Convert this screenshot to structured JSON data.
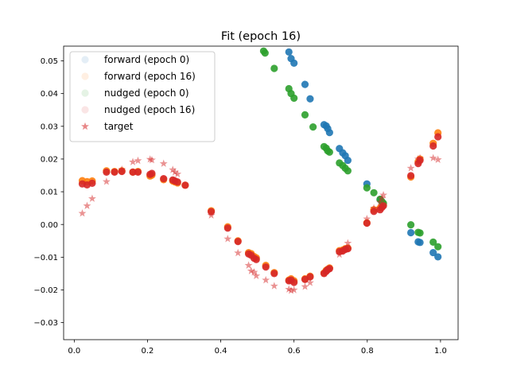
{
  "chart_data": {
    "type": "scatter",
    "title": "Fit (epoch 16)",
    "xlabel": "",
    "ylabel": "",
    "xlim": [
      -0.029,
      1.048
    ],
    "ylim": [
      -0.0352,
      0.0545
    ],
    "xticks": [
      0.0,
      0.2,
      0.4,
      0.6,
      0.8,
      1.0
    ],
    "xtick_labels": [
      "0.0",
      "0.2",
      "0.4",
      "0.6",
      "0.8",
      "1.0"
    ],
    "yticks": [
      -0.03,
      -0.02,
      -0.01,
      0.0,
      0.01,
      0.02,
      0.03,
      0.04,
      0.05
    ],
    "ytick_labels": [
      "−0.03",
      "−0.02",
      "−0.01",
      "0.00",
      "0.01",
      "0.02",
      "0.03",
      "0.04",
      "0.05"
    ],
    "grid": false,
    "legend_position": "top-left",
    "series": [
      {
        "name": "forward (epoch 0)",
        "color": "#1f77b4",
        "marker": "circle",
        "legend_alpha": 0.12,
        "points": [
          [
            0.586,
            0.0527
          ],
          [
            0.592,
            0.0507
          ],
          [
            0.6,
            0.0493
          ],
          [
            0.63,
            0.0428
          ],
          [
            0.644,
            0.0384
          ],
          [
            0.682,
            0.0305
          ],
          [
            0.688,
            0.0301
          ],
          [
            0.692,
            0.0293
          ],
          [
            0.697,
            0.0281
          ],
          [
            0.724,
            0.0232
          ],
          [
            0.733,
            0.0219
          ],
          [
            0.74,
            0.021
          ],
          [
            0.747,
            0.0196
          ],
          [
            0.799,
            0.0124
          ],
          [
            0.835,
            0.0076
          ],
          [
            0.919,
            -0.0025
          ],
          [
            0.939,
            -0.0053
          ],
          [
            0.944,
            -0.0055
          ],
          [
            0.98,
            -0.0086
          ],
          [
            0.993,
            -0.0099
          ]
        ]
      },
      {
        "name": "forward (epoch 16)",
        "color": "#ff7f0e",
        "marker": "circle",
        "legend_alpha": 0.12,
        "points": [
          [
            0.022,
            0.0134
          ],
          [
            0.035,
            0.0131
          ],
          [
            0.049,
            0.0133
          ],
          [
            0.088,
            0.0164
          ],
          [
            0.11,
            0.0162
          ],
          [
            0.13,
            0.0164
          ],
          [
            0.16,
            0.016
          ],
          [
            0.174,
            0.0162
          ],
          [
            0.207,
            0.0148
          ],
          [
            0.212,
            0.0151
          ],
          [
            0.244,
            0.0137
          ],
          [
            0.269,
            0.0133
          ],
          [
            0.275,
            0.013
          ],
          [
            0.282,
            0.0127
          ],
          [
            0.303,
            0.012
          ],
          [
            0.374,
            0.0042
          ],
          [
            0.419,
            -0.0007
          ],
          [
            0.447,
            -0.005
          ],
          [
            0.476,
            -0.0086
          ],
          [
            0.483,
            -0.0089
          ],
          [
            0.491,
            -0.0098
          ],
          [
            0.497,
            -0.0102
          ],
          [
            0.523,
            -0.0125
          ],
          [
            0.546,
            -0.0147
          ],
          [
            0.586,
            -0.017
          ],
          [
            0.592,
            -0.0166
          ],
          [
            0.6,
            -0.0172
          ],
          [
            0.63,
            -0.0166
          ],
          [
            0.644,
            -0.0158
          ],
          [
            0.682,
            -0.0148
          ],
          [
            0.688,
            -0.014
          ],
          [
            0.692,
            -0.0137
          ],
          [
            0.697,
            -0.0133
          ],
          [
            0.724,
            -0.008
          ],
          [
            0.733,
            -0.0078
          ],
          [
            0.74,
            -0.0074
          ],
          [
            0.747,
            -0.0072
          ],
          [
            0.799,
            0.0005
          ],
          [
            0.818,
            0.0045
          ],
          [
            0.835,
            0.005
          ],
          [
            0.84,
            0.0056
          ],
          [
            0.844,
            0.006
          ],
          [
            0.919,
            0.0145
          ],
          [
            0.939,
            0.0192
          ],
          [
            0.944,
            0.02
          ],
          [
            0.98,
            0.0248
          ],
          [
            0.993,
            0.028
          ]
        ]
      },
      {
        "name": "nudged (epoch 0)",
        "color": "#2ca02c",
        "marker": "circle",
        "legend_alpha": 0.12,
        "points": [
          [
            0.517,
            0.053
          ],
          [
            0.521,
            0.0524
          ],
          [
            0.546,
            0.0477
          ],
          [
            0.586,
            0.0415
          ],
          [
            0.592,
            0.04
          ],
          [
            0.6,
            0.0386
          ],
          [
            0.63,
            0.0335
          ],
          [
            0.652,
            0.0298
          ],
          [
            0.682,
            0.0238
          ],
          [
            0.688,
            0.0233
          ],
          [
            0.692,
            0.0225
          ],
          [
            0.697,
            0.0221
          ],
          [
            0.724,
            0.0188
          ],
          [
            0.733,
            0.018
          ],
          [
            0.74,
            0.0172
          ],
          [
            0.747,
            0.0164
          ],
          [
            0.799,
            0.0112
          ],
          [
            0.818,
            0.0097
          ],
          [
            0.835,
            0.0077
          ],
          [
            0.84,
            0.007
          ],
          [
            0.844,
            0.0065
          ],
          [
            0.919,
            -0.0001
          ],
          [
            0.939,
            -0.0024
          ],
          [
            0.944,
            -0.0026
          ],
          [
            0.98,
            -0.0054
          ],
          [
            0.993,
            -0.0068
          ]
        ]
      },
      {
        "name": "nudged (epoch 16)",
        "color": "#d62728",
        "marker": "circle",
        "legend_alpha": 0.12,
        "points": [
          [
            0.022,
            0.0124
          ],
          [
            0.035,
            0.0121
          ],
          [
            0.049,
            0.0126
          ],
          [
            0.088,
            0.016
          ],
          [
            0.11,
            0.016
          ],
          [
            0.13,
            0.0162
          ],
          [
            0.16,
            0.016
          ],
          [
            0.174,
            0.016
          ],
          [
            0.207,
            0.0153
          ],
          [
            0.212,
            0.0156
          ],
          [
            0.244,
            0.014
          ],
          [
            0.269,
            0.0136
          ],
          [
            0.275,
            0.0133
          ],
          [
            0.282,
            0.013
          ],
          [
            0.303,
            0.012
          ],
          [
            0.374,
            0.0039
          ],
          [
            0.419,
            -0.0011
          ],
          [
            0.447,
            -0.0052
          ],
          [
            0.476,
            -0.009
          ],
          [
            0.483,
            -0.0094
          ],
          [
            0.491,
            -0.0103
          ],
          [
            0.497,
            -0.0107
          ],
          [
            0.523,
            -0.013
          ],
          [
            0.546,
            -0.015
          ],
          [
            0.586,
            -0.0172
          ],
          [
            0.592,
            -0.017
          ],
          [
            0.6,
            -0.0177
          ],
          [
            0.63,
            -0.0168
          ],
          [
            0.644,
            -0.016
          ],
          [
            0.682,
            -0.015
          ],
          [
            0.688,
            -0.0143
          ],
          [
            0.692,
            -0.0138
          ],
          [
            0.697,
            -0.0135
          ],
          [
            0.724,
            -0.0083
          ],
          [
            0.733,
            -0.0081
          ],
          [
            0.74,
            -0.0076
          ],
          [
            0.747,
            -0.0074
          ],
          [
            0.799,
            0.0004
          ],
          [
            0.818,
            0.004
          ],
          [
            0.835,
            0.0045
          ],
          [
            0.84,
            0.0052
          ],
          [
            0.844,
            0.0057
          ],
          [
            0.919,
            0.0149
          ],
          [
            0.939,
            0.0186
          ],
          [
            0.944,
            0.0196
          ],
          [
            0.98,
            0.024
          ],
          [
            0.993,
            0.0268
          ]
        ]
      },
      {
        "name": "target",
        "color": "#d62728",
        "marker": "star",
        "legend_alpha": 0.55,
        "points": [
          [
            0.022,
            0.0034
          ],
          [
            0.035,
            0.0057
          ],
          [
            0.049,
            0.0079
          ],
          [
            0.088,
            0.0131
          ],
          [
            0.13,
            0.0168
          ],
          [
            0.16,
            0.0191
          ],
          [
            0.174,
            0.0195
          ],
          [
            0.207,
            0.0199
          ],
          [
            0.212,
            0.0197
          ],
          [
            0.244,
            0.0186
          ],
          [
            0.269,
            0.0167
          ],
          [
            0.275,
            0.016
          ],
          [
            0.282,
            0.0154
          ],
          [
            0.374,
            0.0028
          ],
          [
            0.419,
            -0.0044
          ],
          [
            0.447,
            -0.0087
          ],
          [
            0.476,
            -0.0125
          ],
          [
            0.483,
            -0.0142
          ],
          [
            0.491,
            -0.0146
          ],
          [
            0.497,
            -0.0157
          ],
          [
            0.523,
            -0.017
          ],
          [
            0.546,
            -0.0188
          ],
          [
            0.586,
            -0.0198
          ],
          [
            0.592,
            -0.0202
          ],
          [
            0.6,
            -0.02
          ],
          [
            0.63,
            -0.019
          ],
          [
            0.644,
            -0.0178
          ],
          [
            0.682,
            -0.0148
          ],
          [
            0.688,
            -0.0144
          ],
          [
            0.692,
            -0.0138
          ],
          [
            0.697,
            -0.0135
          ],
          [
            0.724,
            -0.0092
          ],
          [
            0.74,
            -0.0076
          ],
          [
            0.747,
            -0.0057
          ],
          [
            0.799,
            0.0017
          ],
          [
            0.818,
            0.005
          ],
          [
            0.835,
            0.0068
          ],
          [
            0.84,
            0.008
          ],
          [
            0.844,
            0.009
          ],
          [
            0.919,
            0.0172
          ],
          [
            0.939,
            0.02
          ],
          [
            0.944,
            0.0203
          ],
          [
            0.98,
            0.0203
          ],
          [
            0.993,
            0.0198
          ]
        ]
      }
    ]
  }
}
